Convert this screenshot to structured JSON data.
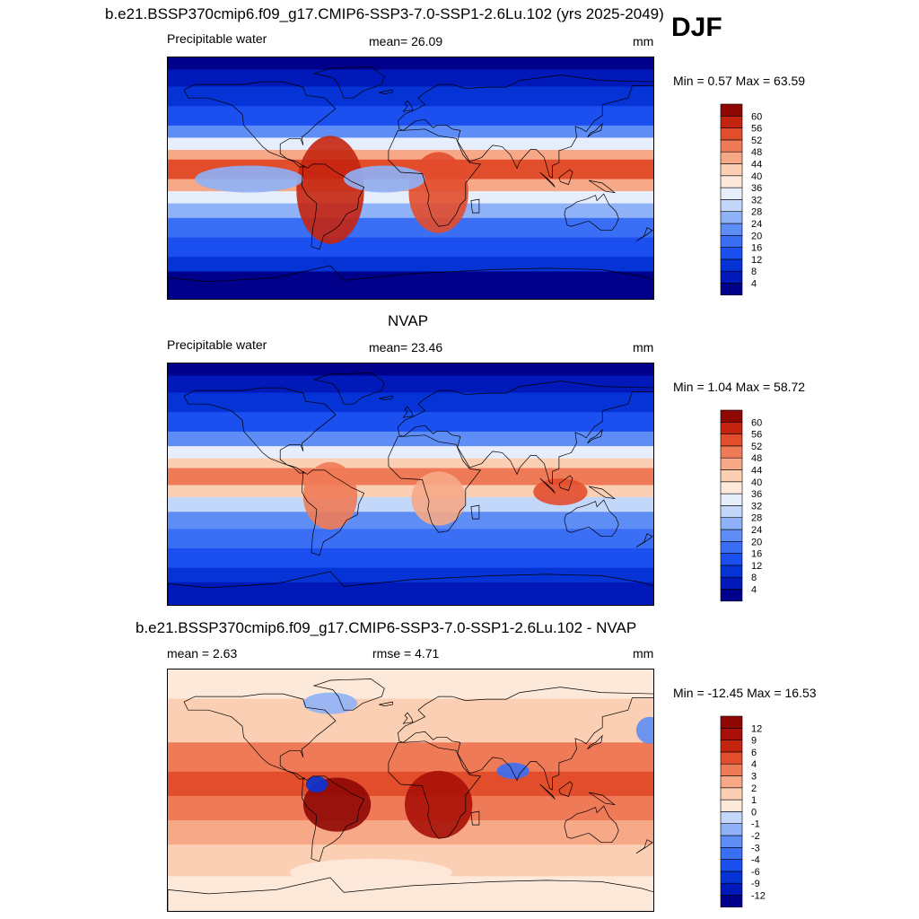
{
  "header": {
    "title": "b.e21.BSSP370cmip6.f09_g17.CMIP6-SSP3-7.0-SSP1-2.6Lu.102 (yrs 2025-2049)",
    "season": "DJF"
  },
  "panels": [
    {
      "id": "model",
      "left_label": "Precipitable water",
      "center_label": "mean=  26.09",
      "right_label": "mm",
      "minmax": "Min =   0.57 Max =  63.59"
    },
    {
      "id": "obs",
      "title": "NVAP",
      "left_label": "Precipitable water",
      "center_label": "mean=  23.46",
      "right_label": "mm",
      "minmax": "Min =   1.04 Max =  58.72"
    },
    {
      "id": "diff",
      "title": "b.e21.BSSP370cmip6.f09_g17.CMIP6-SSP3-7.0-SSP1-2.6Lu.102 - NVAP",
      "left_label": "mean =   2.63",
      "center_label": "rmse =   4.71",
      "right_label": "mm",
      "minmax": "Min = -12.45 Max =  16.53"
    }
  ],
  "chart_data": [
    {
      "type": "heatmap",
      "title": "Precipitable water",
      "units": "mm",
      "mean": 26.09,
      "min": 0.57,
      "max": 63.59,
      "colorbar_levels": [
        4,
        8,
        12,
        16,
        20,
        24,
        28,
        32,
        36,
        40,
        44,
        48,
        52,
        56,
        60
      ],
      "colors": [
        "#00008b",
        "#0019b8",
        "#0533d6",
        "#1b4ff0",
        "#3a6ef5",
        "#5e8df5",
        "#8fb1f7",
        "#c3d7fa",
        "#e6eefc",
        "#fde9da",
        "#fbcfb4",
        "#f6a887",
        "#ef7a57",
        "#e24d2c",
        "#c52510",
        "#8f0805"
      ]
    },
    {
      "type": "heatmap",
      "title": "Precipitable water",
      "units": "mm",
      "mean": 23.46,
      "min": 1.04,
      "max": 58.72,
      "colorbar_levels": [
        4,
        8,
        12,
        16,
        20,
        24,
        28,
        32,
        36,
        40,
        44,
        48,
        52,
        56,
        60
      ],
      "colors": [
        "#00008b",
        "#0019b8",
        "#0533d6",
        "#1b4ff0",
        "#3a6ef5",
        "#5e8df5",
        "#8fb1f7",
        "#c3d7fa",
        "#e6eefc",
        "#fde9da",
        "#fbcfb4",
        "#f6a887",
        "#ef7a57",
        "#e24d2c",
        "#c52510",
        "#8f0805"
      ]
    },
    {
      "type": "heatmap",
      "title": "b.e21.BSSP370cmip6.f09_g17.CMIP6-SSP3-7.0-SSP1-2.6Lu.102 - NVAP",
      "units": "mm",
      "mean": 2.63,
      "rmse": 4.71,
      "min": -12.45,
      "max": 16.53,
      "colorbar_levels": [
        -12,
        -9,
        -6,
        -4,
        -3,
        -2,
        -1,
        0,
        1,
        2,
        3,
        4,
        6,
        9,
        12
      ],
      "colors": [
        "#00008b",
        "#0019b8",
        "#0533d6",
        "#1b4ff0",
        "#3a6ef5",
        "#5e8df5",
        "#8fb1f7",
        "#c3d7fa",
        "#fde9da",
        "#fbcfb4",
        "#f6a887",
        "#ef7a57",
        "#e24d2c",
        "#c52510",
        "#a80f08",
        "#8f0805"
      ]
    }
  ]
}
